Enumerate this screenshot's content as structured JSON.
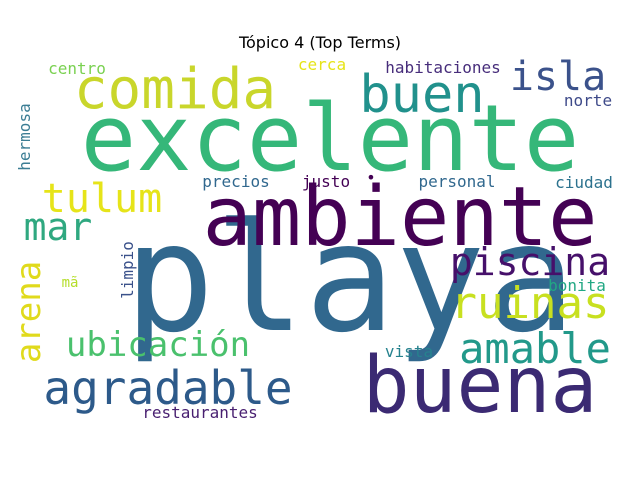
{
  "chart_data": {
    "type": "wordcloud",
    "title": "Tópico 4 (Top Terms)",
    "colormap": "viridis",
    "words": [
      {
        "text": "playa",
        "color": "#31688e"
      },
      {
        "text": "excelente",
        "color": "#35b779"
      },
      {
        "text": "ambiente",
        "color": "#440154"
      },
      {
        "text": "buena",
        "color": "#3b2a73"
      },
      {
        "text": "comida",
        "color": "#c9d62b"
      },
      {
        "text": "buen",
        "color": "#21918c"
      },
      {
        "text": "isla",
        "color": "#3b528b"
      },
      {
        "text": "tulum",
        "color": "#e6e419"
      },
      {
        "text": "mar",
        "color": "#2fa880"
      },
      {
        "text": "piscina",
        "color": "#46106a"
      },
      {
        "text": "ruinas",
        "color": "#c8e020"
      },
      {
        "text": "agradable",
        "color": "#2d5a8a"
      },
      {
        "text": "amable",
        "color": "#22998a"
      },
      {
        "text": "ubicación",
        "color": "#4ac16d"
      },
      {
        "text": "arena",
        "color": "#e0da1c"
      },
      {
        "text": "centro",
        "color": "#7ad151"
      },
      {
        "text": "cerca",
        "color": "#e6e419"
      },
      {
        "text": "habitaciones",
        "color": "#472d7b"
      },
      {
        "text": "norte",
        "color": "#3e4a89"
      },
      {
        "text": "hermosa",
        "color": "#3b7d94"
      },
      {
        "text": "precios",
        "color": "#31688e"
      },
      {
        "text": "justo",
        "color": "#440154"
      },
      {
        "text": "personal",
        "color": "#31688e"
      },
      {
        "text": "ciudad",
        "color": "#2c728e"
      },
      {
        "text": "limpio",
        "color": "#3b528b"
      },
      {
        "text": "bonita",
        "color": "#22a884"
      },
      {
        "text": "mã",
        "color": "#b5de2b"
      },
      {
        "text": "vista",
        "color": "#26828e"
      },
      {
        "text": "restaurantes",
        "color": "#481f70"
      },
      {
        "text": "•",
        "color": "#440154"
      }
    ]
  }
}
